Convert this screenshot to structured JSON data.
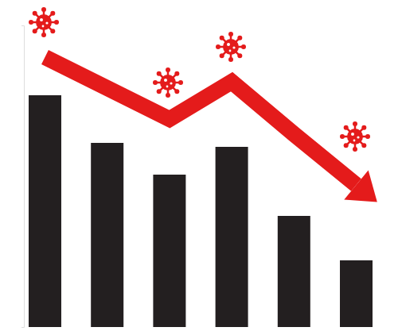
{
  "chart_data": {
    "type": "bar",
    "categories": [
      null,
      null,
      null,
      null,
      null,
      null
    ],
    "series": [
      {
        "type": "bar",
        "color": "#231f20",
        "values": [
          292,
          232,
          192,
          227,
          140,
          84
        ]
      },
      {
        "type": "line",
        "color": "#e41b1b",
        "marker": "arrow",
        "values": [
          340,
          301,
          262,
          309,
          243,
          179
        ]
      }
    ],
    "ylim": [
      0,
      380
    ],
    "yticks": [
      0,
      380
    ],
    "tick_labels": false
  }
}
